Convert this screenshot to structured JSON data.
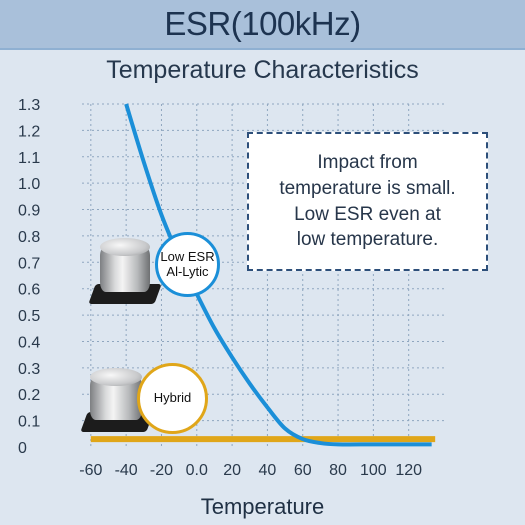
{
  "chart_data": {
    "type": "line",
    "title": "ESR(100kHz)",
    "subtitle": "Temperature Characteristics",
    "xlabel": "Temperature",
    "ylabel": "",
    "xlim": [
      -65,
      140
    ],
    "ylim": [
      0,
      1.3
    ],
    "x_ticks": [
      -60,
      -40,
      -20,
      0,
      20,
      40,
      60,
      80,
      100,
      120
    ],
    "x_tick_labels": [
      "-60",
      "-40",
      "-20",
      "0.0",
      "20",
      "40",
      "60",
      "80",
      "100",
      "120"
    ],
    "y_ticks": [
      0,
      0.1,
      0.2,
      0.3,
      0.4,
      0.5,
      0.6,
      0.7,
      0.8,
      0.9,
      1.0,
      1.1,
      1.2,
      1.3
    ],
    "y_tick_labels": [
      "0",
      "0.1",
      "0.2",
      "0.3",
      "0.4",
      "0.5",
      "0.6",
      "0.7",
      "0.8",
      "0.9",
      "1.0",
      "1.1",
      "1.2",
      "1.3"
    ],
    "grid": true,
    "series": [
      {
        "name": "Low ESR Al-Lytic",
        "color": "#1b8fd8",
        "x": [
          -40,
          -30,
          -20,
          -10,
          0,
          10,
          20,
          30,
          40,
          50,
          60,
          70,
          80,
          100,
          120,
          133
        ],
        "y": [
          1.3,
          1.08,
          0.88,
          0.72,
          0.58,
          0.45,
          0.34,
          0.24,
          0.15,
          0.07,
          0.03,
          0.015,
          0.01,
          0.01,
          0.01,
          0.01
        ]
      },
      {
        "name": "Hybrid",
        "color": "#e0a619",
        "x": [
          -60,
          -40,
          -20,
          0,
          20,
          40,
          60,
          80,
          100,
          120,
          135
        ],
        "y": [
          0.03,
          0.03,
          0.03,
          0.03,
          0.03,
          0.03,
          0.03,
          0.03,
          0.03,
          0.03,
          0.03
        ]
      }
    ],
    "annotations": [
      "Impact from\ntemperature is small.\nLow ESR even at\nlow temperature."
    ]
  },
  "labels": {
    "al_lytic_bubble": "Low ESR\nAl-Lytic",
    "hybrid_bubble": "Hybrid"
  }
}
